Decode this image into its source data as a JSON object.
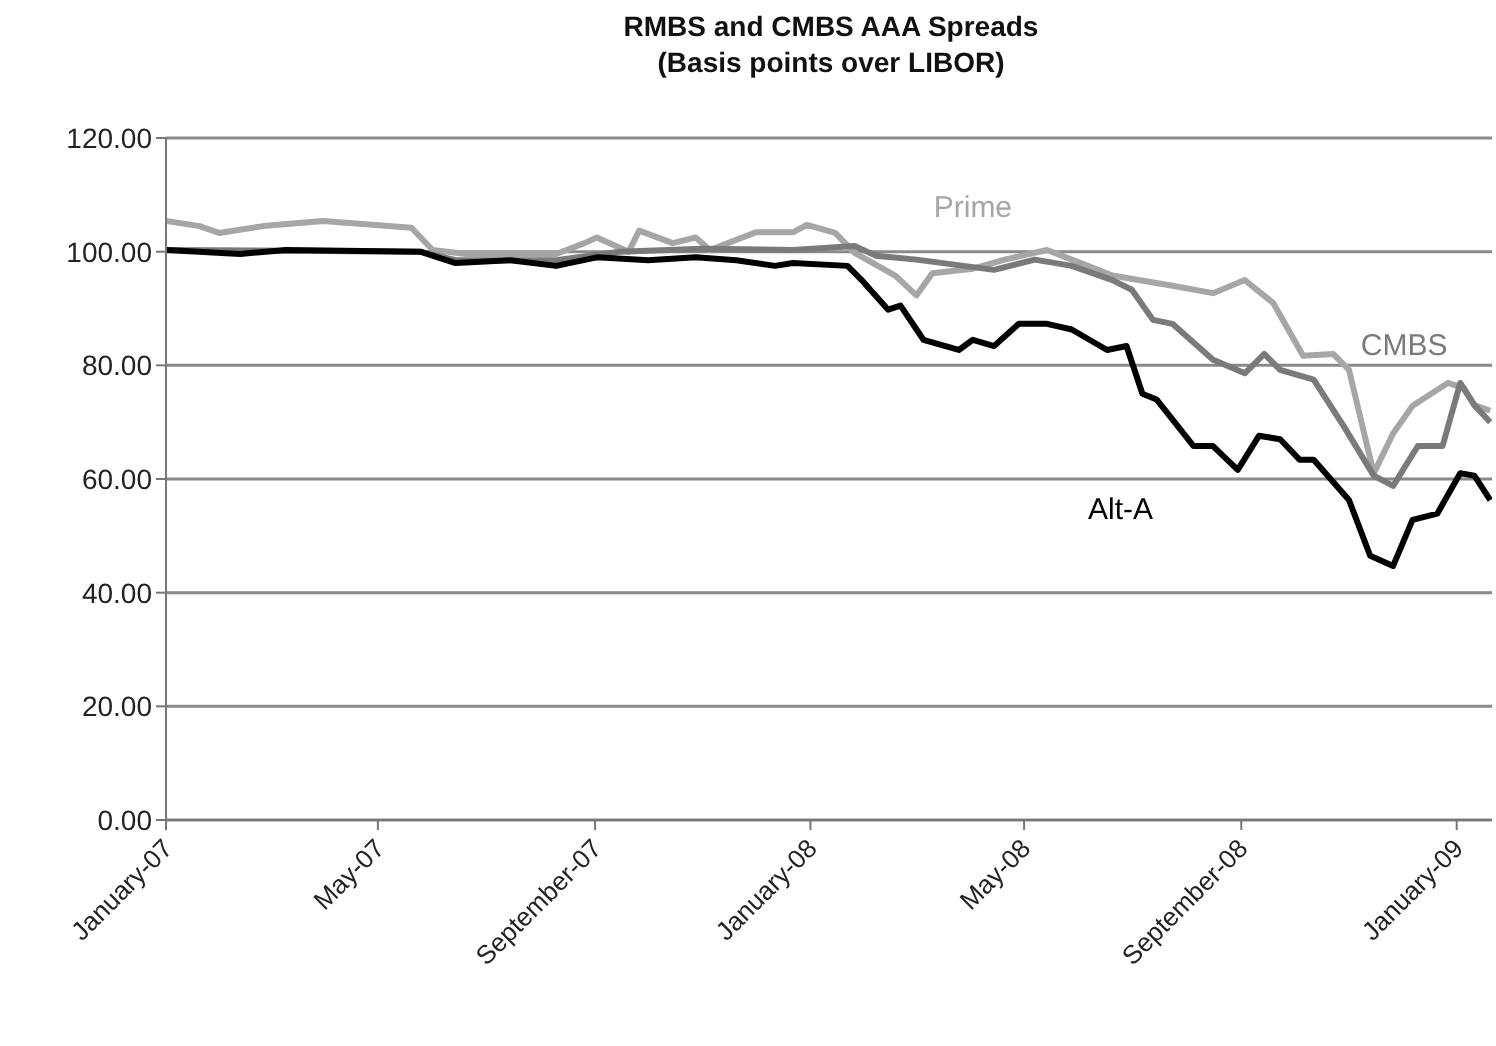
{
  "chart_data": {
    "type": "line",
    "title": "RMBS and CMBS AAA Spreads",
    "subtitle": "(Basis points over LIBOR)",
    "xlim": [
      "2007-01-01",
      "2009-01-21"
    ],
    "xticks": [
      {
        "value": "2007-01-01",
        "label": "January-07"
      },
      {
        "value": "2007-05-01",
        "label": "May-07"
      },
      {
        "value": "2007-09-01",
        "label": "September-07"
      },
      {
        "value": "2008-01-01",
        "label": "January-08"
      },
      {
        "value": "2008-05-01",
        "label": "May-08"
      },
      {
        "value": "2008-09-01",
        "label": "September-08"
      },
      {
        "value": "2009-01-01",
        "label": "January-09"
      }
    ],
    "ylim": [
      0,
      120
    ],
    "yticks": [
      {
        "value": 0,
        "label": "0.00"
      },
      {
        "value": 20,
        "label": "20.00"
      },
      {
        "value": 40,
        "label": "40.00"
      },
      {
        "value": 60,
        "label": "60.00"
      },
      {
        "value": 80,
        "label": "80.00"
      },
      {
        "value": 100,
        "label": "100.00"
      },
      {
        "value": 120,
        "label": "120.00"
      }
    ],
    "grid": "y",
    "legend": false,
    "marker": "none",
    "line_style": "solid",
    "series": [
      {
        "name": "Prime",
        "color": "#a6a6a6",
        "x": [
          "2007-01-01",
          "2007-01-20",
          "2007-01-31",
          "2007-02-25",
          "2007-03-31",
          "2007-05-20",
          "2007-06-01",
          "2007-06-20",
          "2007-08-10",
          "2007-08-26",
          "2007-09-02",
          "2007-09-20",
          "2007-09-26",
          "2007-10-15",
          "2007-10-28",
          "2007-11-05",
          "2007-12-01",
          "2007-12-22",
          "2007-12-30",
          "2008-01-15",
          "2008-01-26",
          "2008-02-18",
          "2008-03-01",
          "2008-03-10",
          "2008-04-02",
          "2008-04-20",
          "2008-05-14",
          "2008-05-28",
          "2008-06-20",
          "2008-07-24",
          "2008-08-16",
          "2008-09-03",
          "2008-09-19",
          "2008-10-06",
          "2008-10-23",
          "2008-11-01",
          "2008-11-15",
          "2008-11-26",
          "2008-12-07",
          "2008-12-27",
          "2009-01-05",
          "2009-01-11",
          "2009-01-20"
        ],
        "values": [
          105.4,
          104.5,
          103.3,
          104.5,
          105.4,
          104.2,
          100.3,
          99.6,
          99.6,
          101.5,
          102.5,
          100,
          103.7,
          101.5,
          102.5,
          100.3,
          103.4,
          103.4,
          104.7,
          103.3,
          99.8,
          95.8,
          92.3,
          96.2,
          97,
          98.6,
          100.3,
          98.6,
          95.8,
          94,
          92.7,
          95,
          91,
          81.7,
          82,
          79.2,
          61,
          68,
          72.9,
          76.9,
          76,
          73,
          72
        ]
      },
      {
        "name": "CMBS",
        "color": "#7a7a7a",
        "x": [
          "2007-01-01",
          "2007-05-25",
          "2007-06-14",
          "2007-08-10",
          "2007-09-15",
          "2007-11-01",
          "2007-12-22",
          "2008-01-26",
          "2008-02-07",
          "2008-03-01",
          "2008-04-14",
          "2008-05-07",
          "2008-05-28",
          "2008-06-20",
          "2008-07-01",
          "2008-07-13",
          "2008-07-24",
          "2008-08-16",
          "2008-09-03",
          "2008-09-14",
          "2008-09-23",
          "2008-10-12",
          "2008-10-29",
          "2008-11-15",
          "2008-11-26",
          "2008-12-10",
          "2008-12-24",
          "2009-01-03",
          "2009-01-11",
          "2009-01-20"
        ],
        "values": [
          100.3,
          100,
          98.5,
          98.5,
          100,
          100.5,
          100.3,
          101,
          99.3,
          98.6,
          96.8,
          98.6,
          97.5,
          95,
          93.3,
          88,
          87.3,
          81,
          78.6,
          82,
          79.2,
          77.5,
          69.3,
          60.6,
          58.8,
          65.8,
          65.8,
          76.9,
          73,
          70
        ]
      },
      {
        "name": "Alt-A",
        "color": "#000000",
        "x": [
          "2007-01-01",
          "2007-02-12",
          "2007-03-10",
          "2007-05-25",
          "2007-06-14",
          "2007-07-15",
          "2007-08-10",
          "2007-09-02",
          "2007-10-01",
          "2007-10-28",
          "2007-11-20",
          "2007-12-12",
          "2007-12-22",
          "2008-01-22",
          "2008-01-30",
          "2008-02-14",
          "2008-02-21",
          "2008-03-05",
          "2008-03-25",
          "2008-04-02",
          "2008-04-14",
          "2008-04-28",
          "2008-05-14",
          "2008-05-28",
          "2008-06-17",
          "2008-06-28",
          "2008-07-07",
          "2008-07-15",
          "2008-08-05",
          "2008-08-16",
          "2008-08-30",
          "2008-09-11",
          "2008-09-23",
          "2008-10-04",
          "2008-10-12",
          "2008-11-01",
          "2008-11-13",
          "2008-11-26",
          "2008-12-07",
          "2008-12-21",
          "2009-01-03",
          "2009-01-11",
          "2009-01-20"
        ],
        "values": [
          100.3,
          99.6,
          100.3,
          100,
          98,
          98.5,
          97.5,
          99,
          98.5,
          99,
          98.5,
          97.5,
          98,
          97.5,
          95,
          89.8,
          90.5,
          84.5,
          82.7,
          84.5,
          83.4,
          87.3,
          87.3,
          86.3,
          82.7,
          83.4,
          75,
          74,
          65.8,
          65.8,
          61.6,
          67.6,
          67,
          63.4,
          63.4,
          56.3,
          46.5,
          44.7,
          52.8,
          53.9,
          61,
          60.6,
          56.3
        ]
      }
    ]
  }
}
